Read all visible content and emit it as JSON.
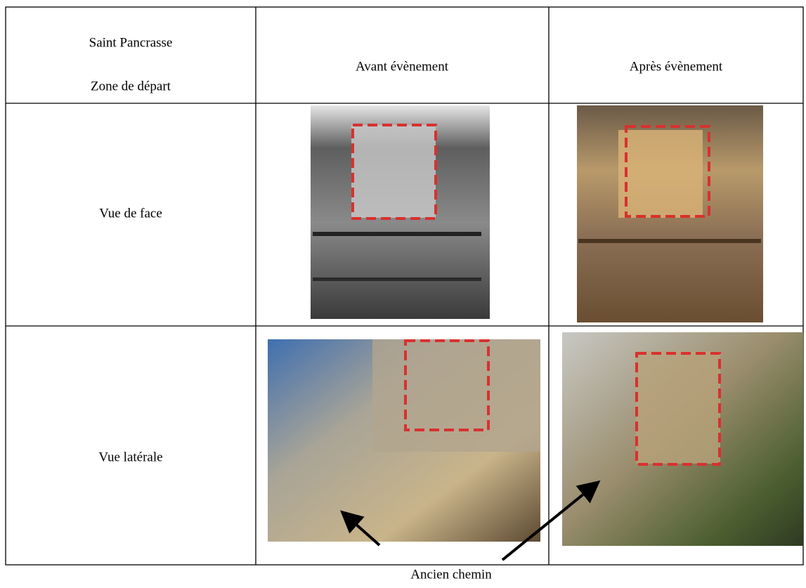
{
  "table": {
    "header": {
      "title_lines": [
        "Saint Pancrasse",
        "Zone de départ"
      ],
      "columns": [
        "Avant évènement",
        "Après évènement"
      ]
    },
    "rows": [
      {
        "label": "Vue de face"
      },
      {
        "label": "Vue latérale"
      }
    ]
  },
  "caption": "Ancien chemin"
}
